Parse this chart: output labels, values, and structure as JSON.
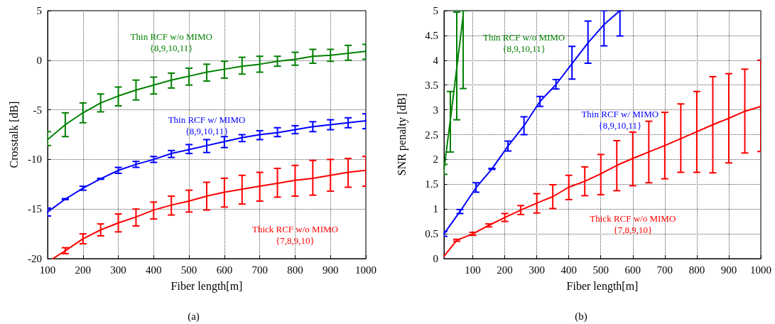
{
  "chart_data": [
    {
      "type": "line",
      "xlabel": "Fiber length[m]",
      "ylabel": "Crosstalk [dB]",
      "xlim": [
        100,
        1000
      ],
      "xticks": [
        100,
        200,
        300,
        400,
        500,
        600,
        700,
        800,
        900,
        1000
      ],
      "ylim": [
        -20,
        5
      ],
      "yticks": [
        -20,
        -15,
        -10,
        -5,
        0,
        5
      ],
      "grid": true,
      "legend": false,
      "marker": "none",
      "line_style": "solid",
      "annotations": [
        "(a)"
      ],
      "series": [
        {
          "name": "Thin RCF w/o MIMO\n{8,9,10,11}",
          "color": "#008000",
          "x": [
            100,
            150,
            200,
            250,
            300,
            350,
            400,
            450,
            500,
            550,
            600,
            650,
            700,
            750,
            800,
            850,
            900,
            950,
            1000
          ],
          "values": [
            -8,
            -6.5,
            -5.3,
            -4.3,
            -3.6,
            -3.0,
            -2.5,
            -2.0,
            -1.6,
            -1.2,
            -0.9,
            -0.6,
            -0.4,
            -0.1,
            0.1,
            0.4,
            0.5,
            0.7,
            0.9
          ],
          "errors": [
            [
              -8.6,
              -7.2
            ],
            [
              -7.7,
              -5.3
            ],
            [
              -6.3,
              -4.3
            ],
            [
              -5.2,
              -3.4
            ],
            [
              -4.6,
              -2.7
            ],
            [
              -4.0,
              -2.0
            ],
            [
              -3.4,
              -1.7
            ],
            [
              -2.8,
              -1.3
            ],
            [
              -2.5,
              -0.8
            ],
            [
              -2.1,
              -0.4
            ],
            [
              -1.8,
              -0.1
            ],
            [
              -1.4,
              0.3
            ],
            [
              -1.2,
              0.4
            ],
            [
              -0.6,
              0.4
            ],
            [
              -0.5,
              0.8
            ],
            [
              -0.3,
              1.1
            ],
            [
              -0.1,
              1.1
            ],
            [
              0,
              1.5
            ],
            [
              0.1,
              1.6
            ]
          ]
        },
        {
          "name": "Thin RCF w/ MIMO\n{8,9,10,11}",
          "color": "#0000ff",
          "x": [
            100,
            150,
            200,
            250,
            300,
            350,
            400,
            450,
            500,
            550,
            600,
            650,
            700,
            750,
            800,
            850,
            900,
            950,
            1000
          ],
          "values": [
            -15.3,
            -14.0,
            -12.9,
            -11.95,
            -11.1,
            -10.5,
            -10.0,
            -9.4,
            -9.0,
            -8.6,
            -8.2,
            -7.8,
            -7.5,
            -7.3,
            -7.0,
            -6.7,
            -6.5,
            -6.3,
            -6.1
          ],
          "errors": [
            [
              -15.7,
              -14.9
            ],
            [
              -14.05,
              -13.95
            ],
            [
              -13.1,
              -12.7
            ],
            [
              -12.0,
              -11.9
            ],
            [
              -11.4,
              -10.8
            ],
            [
              -10.8,
              -10.2
            ],
            [
              -10.3,
              -9.7
            ],
            [
              -9.8,
              -9.1
            ],
            [
              -9.4,
              -8.5
            ],
            [
              -9.3,
              -8.0
            ],
            [
              -8.8,
              -7.7
            ],
            [
              -8.2,
              -7.5
            ],
            [
              -8.0,
              -7.1
            ],
            [
              -7.7,
              -6.8
            ],
            [
              -7.4,
              -6.6
            ],
            [
              -7.2,
              -6.2
            ],
            [
              -7.0,
              -6.0
            ],
            [
              -6.8,
              -5.8
            ],
            [
              -6.9,
              -5.4
            ]
          ]
        },
        {
          "name": "Thick RCF w/o MIMO\n{7,8,9,10}",
          "color": "#ff0000",
          "x": [
            115,
            150,
            200,
            250,
            300,
            350,
            400,
            450,
            500,
            550,
            600,
            650,
            700,
            750,
            800,
            850,
            900,
            950,
            1000
          ],
          "values": [
            -20,
            -19.2,
            -18.0,
            -17.1,
            -16.4,
            -15.8,
            -15.1,
            -14.6,
            -14.2,
            -13.7,
            -13.3,
            -13.0,
            -12.7,
            -12.4,
            -12.1,
            -11.9,
            -11.6,
            -11.3,
            -11.1
          ],
          "errors": [
            null,
            [
              -19.5,
              -18.9
            ],
            [
              -18.5,
              -17.5
            ],
            [
              -17.7,
              -16.5
            ],
            [
              -17.3,
              -15.5
            ],
            [
              -16.7,
              -15.0
            ],
            [
              -16.0,
              -14.3
            ],
            [
              -15.6,
              -13.7
            ],
            [
              -15.3,
              -13.1
            ],
            [
              -15.1,
              -12.3
            ],
            [
              -14.8,
              -11.9
            ],
            [
              -14.5,
              -11.6
            ],
            [
              -14.2,
              -11.3
            ],
            [
              -13.8,
              -10.9
            ],
            [
              -13.7,
              -10.6
            ],
            [
              -13.6,
              -10.1
            ],
            [
              -13.2,
              -10.0
            ],
            [
              -12.8,
              -9.9
            ],
            [
              -12.7,
              -9.7
            ]
          ]
        }
      ]
    },
    {
      "type": "line",
      "xlabel": "Fiber length[m]",
      "ylabel": "SNR penalty [dB]",
      "xlim": [
        10,
        1000
      ],
      "xticks": [
        100,
        200,
        300,
        400,
        500,
        600,
        700,
        800,
        900,
        1000
      ],
      "ylim": [
        0,
        5
      ],
      "yticks": [
        0,
        0.5,
        1,
        1.5,
        2,
        2.5,
        3,
        3.5,
        4,
        4.5,
        5
      ],
      "grid": true,
      "legend": false,
      "marker": "none",
      "line_style": "solid",
      "annotations": [
        "(b)"
      ],
      "series": [
        {
          "name": "Thin RCF w/o MIMO\n{8,9,10,11}",
          "color": "#008000",
          "x": [
            10,
            30,
            50,
            70
          ],
          "values": [
            1.8,
            2.8,
            3.85,
            4.9
          ],
          "errors": [
            [
              1.7,
              1.9
            ],
            [
              2.15,
              3.37
            ],
            [
              2.8,
              4.97
            ],
            [
              3.43,
              5
            ]
          ]
        },
        {
          "name": "Thin RCF w/ MIMO\n{8,9,10,11}",
          "color": "#0000ff",
          "x": [
            10,
            60,
            110,
            160,
            210,
            260,
            310,
            360,
            410,
            460,
            510,
            560
          ],
          "values": [
            0.5,
            0.95,
            1.43,
            1.81,
            2.27,
            2.68,
            3.17,
            3.51,
            3.93,
            4.35,
            4.72,
            5.0
          ],
          "errors": [
            [
              0.45,
              0.55
            ],
            [
              0.91,
              0.99
            ],
            [
              1.34,
              1.53
            ],
            [
              1.8,
              1.82
            ],
            [
              2.17,
              2.37
            ],
            [
              2.5,
              2.86
            ],
            [
              3.07,
              3.27
            ],
            [
              3.42,
              3.61
            ],
            [
              3.62,
              4.28
            ],
            [
              3.94,
              4.79
            ],
            [
              4.29,
              5
            ],
            [
              4.49,
              5
            ]
          ]
        },
        {
          "name": "Thick RCF w/o MIMO\n{7,8,9,10}",
          "color": "#ff0000",
          "x": [
            10,
            50,
            100,
            150,
            200,
            250,
            300,
            350,
            400,
            450,
            500,
            550,
            600,
            650,
            700,
            750,
            800,
            850,
            900,
            950,
            1000
          ],
          "values": [
            0.05,
            0.37,
            0.5,
            0.67,
            0.83,
            0.98,
            1.12,
            1.25,
            1.44,
            1.56,
            1.71,
            1.88,
            2.02,
            2.15,
            2.28,
            2.42,
            2.56,
            2.7,
            2.83,
            2.97,
            3.07
          ],
          "errors": [
            null,
            [
              0.35,
              0.39
            ],
            [
              0.47,
              0.53
            ],
            [
              0.64,
              0.7
            ],
            [
              0.75,
              0.91
            ],
            [
              0.89,
              1.07
            ],
            [
              0.92,
              1.31
            ],
            [
              1.01,
              1.49
            ],
            [
              1.19,
              1.68
            ],
            [
              1.27,
              1.85
            ],
            [
              1.29,
              2.1
            ],
            [
              1.37,
              2.38
            ],
            [
              1.47,
              2.55
            ],
            [
              1.53,
              2.77
            ],
            [
              1.61,
              2.95
            ],
            [
              1.74,
              3.12
            ],
            [
              1.74,
              3.37
            ],
            [
              1.73,
              3.67
            ],
            [
              1.93,
              3.73
            ],
            [
              2.13,
              3.82
            ],
            [
              2.16,
              4.0
            ]
          ]
        }
      ]
    }
  ]
}
